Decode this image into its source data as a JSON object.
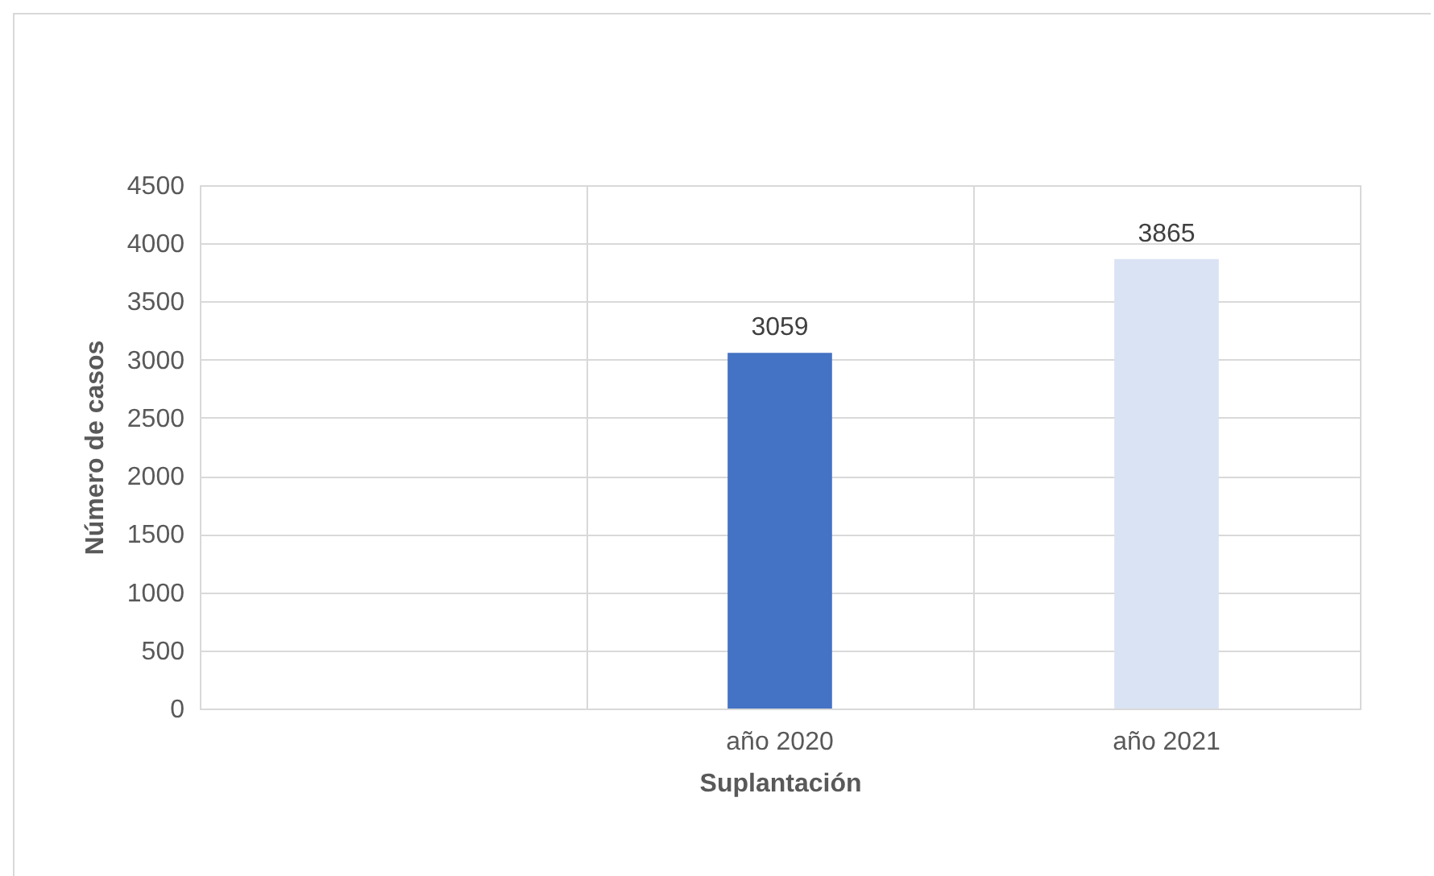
{
  "chart_data": {
    "type": "bar",
    "xlabel": "Suplantación",
    "ylabel": "Número de casos",
    "categories": [
      null,
      "año 2020",
      "año 2021"
    ],
    "values": [
      null,
      3059,
      3865
    ],
    "colors": [
      "#4472c4",
      "#4472c4",
      "#dae3f3"
    ],
    "ylim": [
      0,
      4500
    ],
    "yticks": [
      0,
      500,
      1000,
      1500,
      2000,
      2500,
      3000,
      3500,
      4000,
      4500
    ],
    "grid": true,
    "data_labels": true
  }
}
